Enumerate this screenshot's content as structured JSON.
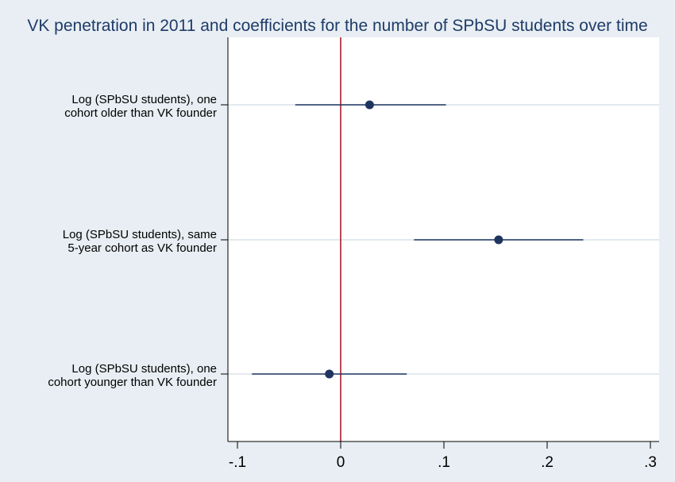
{
  "chart_data": {
    "type": "scatter",
    "subtype": "coefficient-plot",
    "title": "VK penetration in 2011 and coefficients for the number of SPbSU students over time",
    "xlabel": "",
    "ylabel": "",
    "xlim": [
      -0.11,
      0.3
    ],
    "xticks": [
      -0.1,
      0,
      0.1,
      0.2,
      0.3
    ],
    "xtick_labels": [
      "-.1",
      "0",
      ".1",
      ".2",
      ".3"
    ],
    "reference_line": 0,
    "grid": "horizontal",
    "legend": "none",
    "categories": [
      [
        "Log (SPbSU students), one",
        "cohort older than VK founder"
      ],
      [
        "Log (SPbSU students), same",
        "5-year cohort as VK founder"
      ],
      [
        "Log (SPbSU students), one",
        "cohort younger than VK founder"
      ]
    ],
    "points": [
      {
        "estimate": 0.028,
        "ci_low": -0.044,
        "ci_high": 0.102
      },
      {
        "estimate": 0.153,
        "ci_low": 0.071,
        "ci_high": 0.235
      },
      {
        "estimate": -0.011,
        "ci_low": -0.086,
        "ci_high": 0.064
      }
    ],
    "colors": {
      "background": "#e8eef3",
      "plot_area": "#ffffff",
      "title": "#1f3b68",
      "marker": "#1f3560",
      "ci_line": "#1f3560",
      "reference_line": "#a81a2c",
      "grid": "#d9e3ea"
    }
  }
}
